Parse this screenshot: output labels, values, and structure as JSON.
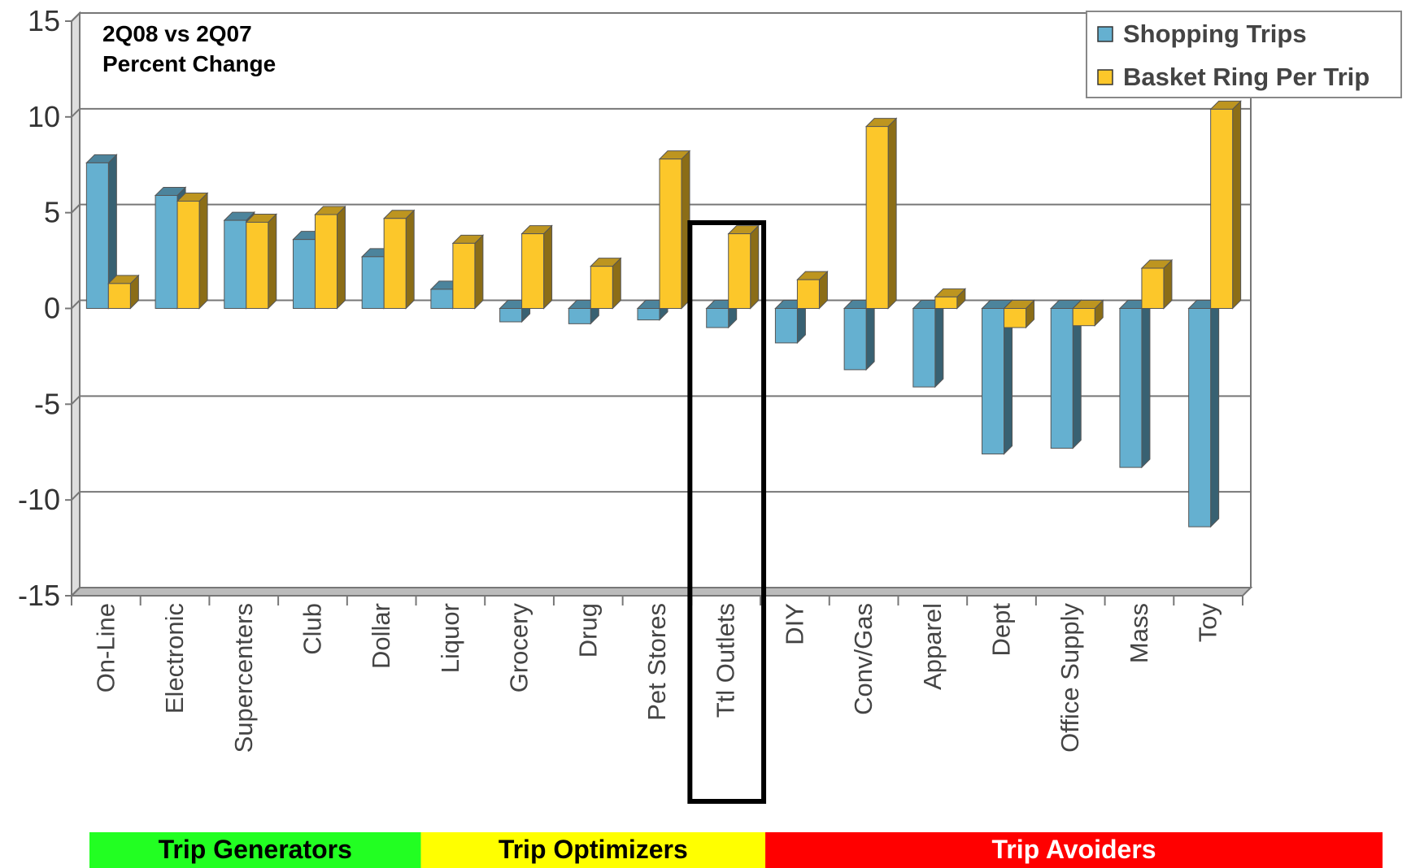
{
  "chart_data": {
    "type": "bar",
    "subtype": "3d-clustered-column",
    "annotation_lines": [
      "2Q08 vs 2Q07",
      "Percent Change"
    ],
    "categories": [
      "On-Line",
      "Electronic",
      "Supercenters",
      "Club",
      "Dollar",
      "Liquor",
      "Grocery",
      "Drug",
      "Pet Stores",
      "Ttl Outlets",
      "DIY",
      "Conv/Gas",
      "Apparel",
      "Dept",
      "Office Supply",
      "Mass",
      "Toy"
    ],
    "series": [
      {
        "name": "Shopping Trips",
        "color": "#65B0D0",
        "values": [
          7.6,
          5.9,
          4.6,
          3.6,
          2.7,
          1.0,
          -0.7,
          -0.8,
          -0.6,
          -1.0,
          -1.8,
          -3.2,
          -4.1,
          -7.6,
          -7.3,
          -8.3,
          -11.4
        ]
      },
      {
        "name": "Basket Ring Per Trip",
        "color": "#FCC72A",
        "values": [
          1.3,
          5.6,
          4.5,
          4.9,
          4.7,
          3.4,
          3.9,
          2.2,
          7.8,
          3.9,
          1.5,
          9.5,
          0.6,
          -1.0,
          -0.9,
          2.1,
          10.4
        ]
      }
    ],
    "ylim": [
      -15,
      15
    ],
    "yticks": [
      15,
      10,
      5,
      0,
      -5,
      -10,
      -15
    ],
    "grid": true,
    "legend": "top-right",
    "highlight_category": "Ttl Outlets",
    "groups": [
      {
        "label": "Trip Generators",
        "color": "#22FF22",
        "text_color": "#000000",
        "from": 0,
        "to": 4
      },
      {
        "label": "Trip Optimizers",
        "color": "#FFFF00",
        "text_color": "#000000",
        "from": 5,
        "to": 9
      },
      {
        "label": "Trip Avoiders",
        "color": "#FF0000",
        "text_color": "#FFFFFF",
        "from": 10,
        "to": 16
      }
    ]
  }
}
